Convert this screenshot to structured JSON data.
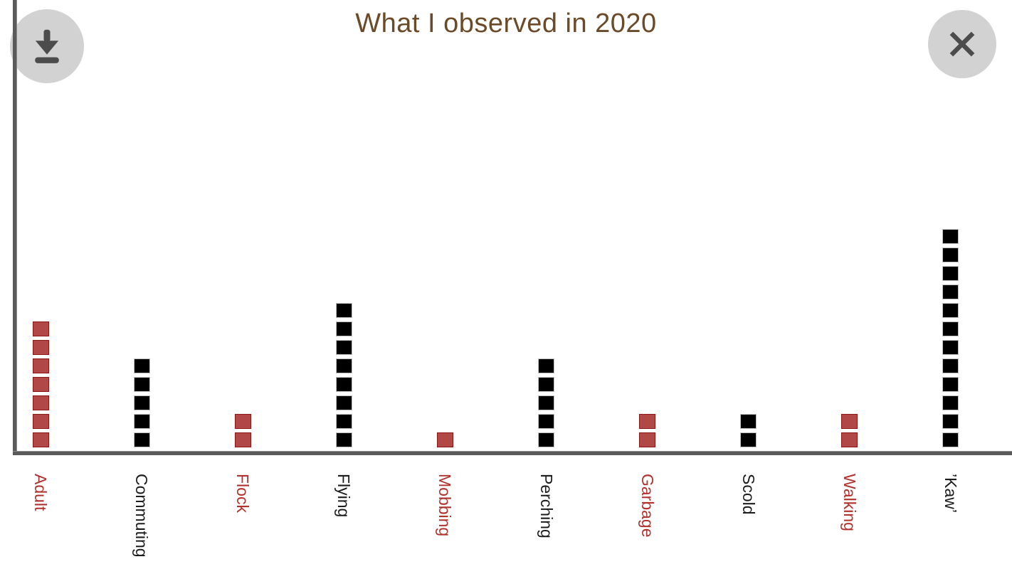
{
  "header": {
    "title": "What I observed in 2020",
    "title_color": "#6b4a28"
  },
  "toolbar": {
    "download_icon": "download-icon",
    "close_icon": "close-icon",
    "button_bg": "#d2d2d2",
    "icon_color": "#4c4c4c"
  },
  "axes": {
    "color": "#5a5a5a"
  },
  "chart_data": {
    "type": "bar",
    "style": "pictograph-unit-squares",
    "title": "What I observed in 2020",
    "categories": [
      "Adult",
      "Commuting",
      "Flock",
      "Flying",
      "Mobbing",
      "Perching",
      "Garbage",
      "Scold",
      "Walking",
      "’Kaw’"
    ],
    "values": [
      7,
      5,
      2,
      8,
      1,
      5,
      2,
      2,
      2,
      12
    ],
    "bar_colors": [
      "red",
      "black",
      "red",
      "black",
      "red",
      "black",
      "red",
      "black",
      "red",
      "black"
    ],
    "palette": {
      "red": "#b04848",
      "red_border": "#8e1414",
      "red_label": "#b1312d",
      "black": "#000000",
      "black_border": "#c0c0c0",
      "black_label": "#1c1c1c"
    },
    "unit_per_square": 1,
    "xlabel": "",
    "ylabel": "",
    "ylim": [
      0,
      12
    ],
    "grid": false,
    "legend": false,
    "x_tick_rotation_deg": 90
  }
}
